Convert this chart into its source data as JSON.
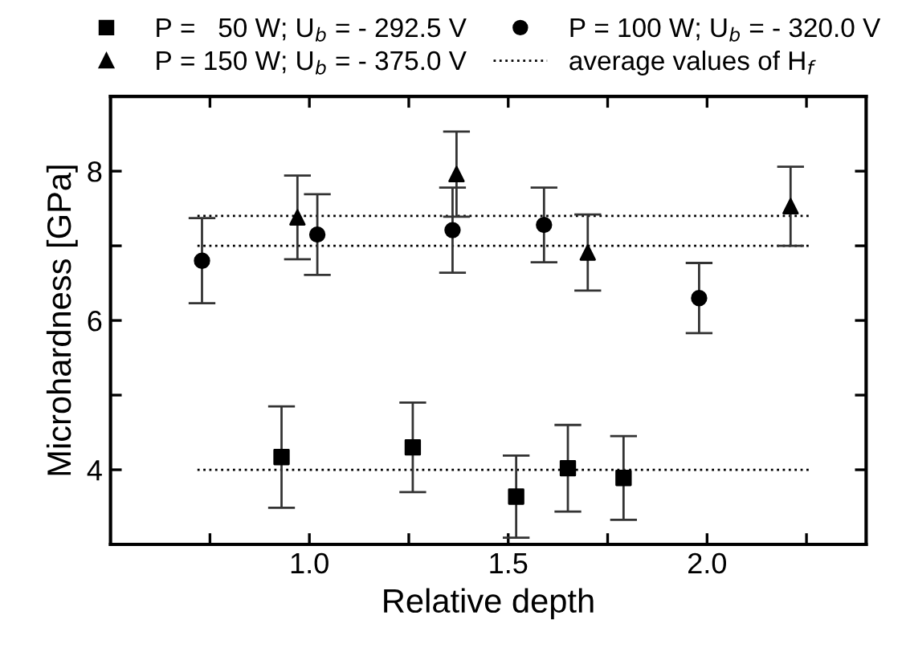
{
  "chart_data": {
    "type": "scatter",
    "xlabel": "Relative depth",
    "ylabel": "Microhardness [GPa]",
    "xlim": [
      0.5,
      2.4
    ],
    "ylim": [
      3,
      9
    ],
    "xticks": [
      {
        "value": 0.75,
        "label": null
      },
      {
        "value": 1.0,
        "label": "1.0"
      },
      {
        "value": 1.25,
        "label": null
      },
      {
        "value": 1.5,
        "label": "1.5"
      },
      {
        "value": 1.75,
        "label": null
      },
      {
        "value": 2.0,
        "label": "2.0"
      },
      {
        "value": 2.25,
        "label": null
      }
    ],
    "yticks": [
      4,
      {
        "value": 5,
        "label": null
      },
      6,
      {
        "value": 7,
        "label": null
      },
      8
    ],
    "grid": false,
    "legend": "top",
    "series": [
      {
        "name": "P =   50 W; U$_{b}$ = - 292.5 V",
        "color": "#000000",
        "marker": "square",
        "x": [
          0.93,
          1.26,
          1.52,
          1.65,
          1.79
        ],
        "values": [
          4.17,
          4.3,
          3.64,
          4.02,
          3.89
        ],
        "errors": [
          0.68,
          0.6,
          0.55,
          0.58,
          0.56
        ]
      },
      {
        "name": "P = 100 W; U$_{b}$ = - 320.0 V",
        "color": "#000000",
        "marker": "circle",
        "x": [
          0.73,
          1.02,
          1.36,
          1.59,
          1.98
        ],
        "values": [
          6.8,
          7.15,
          7.21,
          7.28,
          6.3
        ],
        "errors": [
          0.57,
          0.54,
          0.57,
          0.5,
          0.47
        ]
      },
      {
        "name": "P = 150 W; U$_{b}$ = - 375.0 V",
        "color": "#000000",
        "marker": "triangle",
        "x": [
          0.97,
          1.37,
          1.7,
          2.21
        ],
        "values": [
          7.38,
          7.96,
          6.91,
          7.53
        ],
        "errors": [
          0.56,
          0.57,
          0.51,
          0.53
        ]
      }
    ],
    "ref_lines": [
      {
        "axis": "y",
        "value": 7.4,
        "label": "average values of H$_{f}$",
        "line_style": "dotted",
        "color": "#000000"
      },
      {
        "axis": "y",
        "value": 7.0,
        "line_style": "dotted",
        "color": "#000000"
      },
      {
        "axis": "y",
        "value": 4.0,
        "line_style": "dotted",
        "color": "#000000"
      }
    ]
  }
}
